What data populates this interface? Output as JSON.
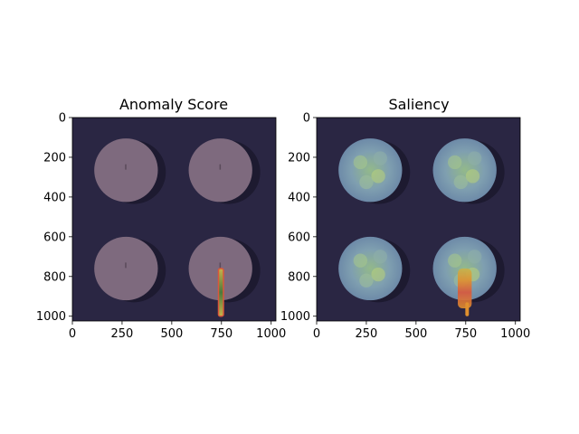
{
  "chart_data": [
    {
      "type": "heatmap",
      "title": "Anomaly Score",
      "xlabel": "",
      "ylabel": "",
      "xlim": [
        0,
        1024
      ],
      "ylim": [
        1024,
        0
      ],
      "xticks": [
        0,
        250,
        500,
        750,
        1000
      ],
      "yticks": [
        0,
        200,
        400,
        600,
        800,
        1000
      ],
      "colormap": "jet",
      "overlay_on": "photo of four round tablets on dark background",
      "tablets": [
        {
          "center": [
            270,
            265
          ],
          "radius": 160
        },
        {
          "center": [
            745,
            265
          ],
          "radius": 160
        },
        {
          "center": [
            270,
            760
          ],
          "radius": 160
        },
        {
          "center": [
            745,
            760
          ],
          "radius": 160
        }
      ],
      "high_region": {
        "x": [
          735,
          760
        ],
        "y": [
          760,
          1000
        ],
        "peak_value": "high"
      },
      "colors": {
        "background": "#2a2643",
        "tablet": "#7e6a7e",
        "stripe_low": "#4c7a3c",
        "stripe_mid": "#c8b24a",
        "stripe_high": "#d9573b"
      }
    },
    {
      "type": "heatmap",
      "title": "Saliency",
      "xlabel": "",
      "ylabel": "",
      "xlim": [
        0,
        1024
      ],
      "ylim": [
        1024,
        0
      ],
      "xticks": [
        0,
        250,
        500,
        750,
        1000
      ],
      "yticks": [
        0,
        200,
        400,
        600,
        800,
        1000
      ],
      "colormap": "jet",
      "overlay_on": "photo of four round tablets on dark background",
      "tablets": [
        {
          "center": [
            270,
            265
          ],
          "radius": 160
        },
        {
          "center": [
            745,
            265
          ],
          "radius": 160
        },
        {
          "center": [
            270,
            760
          ],
          "radius": 160
        },
        {
          "center": [
            745,
            760
          ],
          "radius": 160
        }
      ],
      "high_region": {
        "x": [
          710,
          780
        ],
        "y": [
          760,
          1000
        ],
        "peak_value": "high"
      },
      "colors": {
        "background": "#2a2643",
        "tablet_low": "#6d8aa8",
        "tablet_mid": "#93b98a",
        "high": "#d9573b"
      }
    }
  ]
}
